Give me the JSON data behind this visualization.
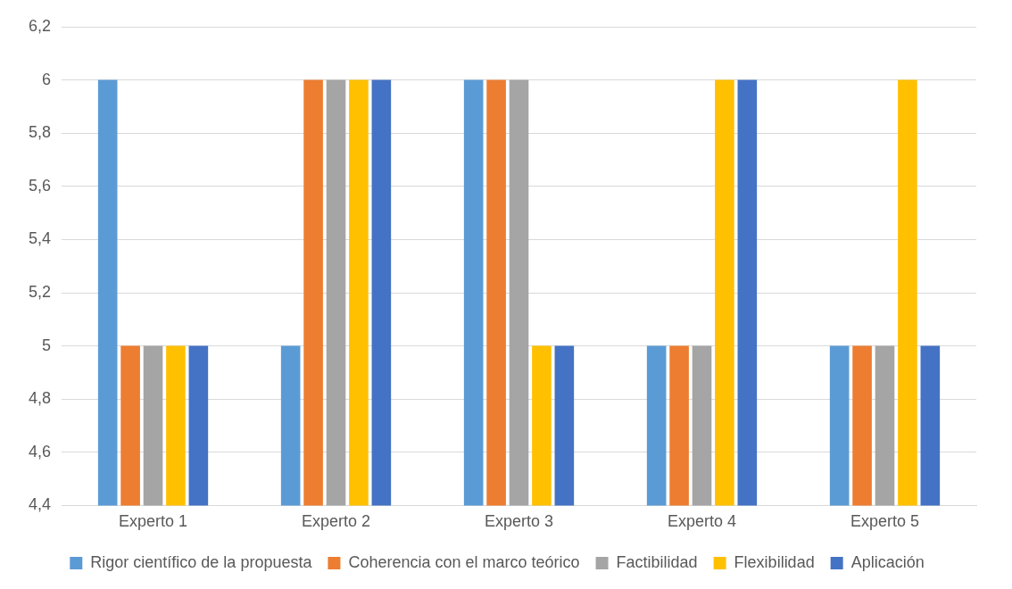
{
  "chart_data": {
    "type": "bar",
    "categories": [
      "Experto 1",
      "Experto 2",
      "Experto 3",
      "Experto 4",
      "Experto 5"
    ],
    "series": [
      {
        "name": "Rigor científico de la propuesta",
        "color": "#5b9bd5",
        "values": [
          6,
          5,
          6,
          5,
          5
        ]
      },
      {
        "name": "Coherencia con el marco teórico",
        "color": "#ed7d31",
        "values": [
          5,
          6,
          6,
          5,
          5
        ]
      },
      {
        "name": "Factibilidad",
        "color": "#a5a5a5",
        "values": [
          5,
          6,
          6,
          5,
          5
        ]
      },
      {
        "name": "Flexibilidad",
        "color": "#ffc000",
        "values": [
          5,
          6,
          5,
          6,
          6
        ]
      },
      {
        "name": "Aplicación",
        "color": "#4472c4",
        "values": [
          5,
          6,
          5,
          6,
          5
        ]
      }
    ],
    "ylim": [
      4.4,
      6.2
    ],
    "yticks": [
      {
        "value": 4.4,
        "label": "4,4"
      },
      {
        "value": 4.6,
        "label": "4,6"
      },
      {
        "value": 4.8,
        "label": "4,8"
      },
      {
        "value": 5,
        "label": "5"
      },
      {
        "value": 5.2,
        "label": "5,2"
      },
      {
        "value": 5.4,
        "label": "5,4"
      },
      {
        "value": 5.6,
        "label": "5,6"
      },
      {
        "value": 5.8,
        "label": "5,8"
      },
      {
        "value": 6,
        "label": "6"
      },
      {
        "value": 6.2,
        "label": "6,2"
      }
    ],
    "grid": "y",
    "legend": "bottom"
  }
}
